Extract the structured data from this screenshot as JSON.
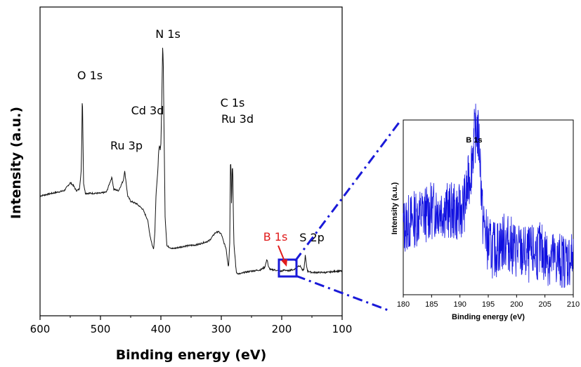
{
  "colors": {
    "main_line": "#111111",
    "inset_line": "#1010e0",
    "highlight_box": "#1a1ad8",
    "connector": "#1a1ad8",
    "b1s_label": "#e01b1b",
    "text": "#000000"
  },
  "chart_data": [
    {
      "type": "line",
      "xlabel": "Binding energy (eV)",
      "ylabel": "Intensity (a.u.)",
      "xlim": [
        600,
        100
      ],
      "x_ticks": [
        "600",
        "500",
        "400",
        "300",
        "200",
        "100"
      ],
      "y_ticks_shown": false,
      "grid": false,
      "annotations": [
        {
          "text": "O 1s",
          "x": 530
        },
        {
          "text": "Ru 3p",
          "x": 470
        },
        {
          "text": "Cd 3d",
          "x": 405
        },
        {
          "text": "N 1s",
          "x": 398
        },
        {
          "text": "C 1s",
          "x": 285
        },
        {
          "text": "Ru 3d",
          "x": 282
        },
        {
          "text": "B 1s",
          "x": 192,
          "color": "red"
        },
        {
          "text": "S 2p",
          "x": 162
        }
      ],
      "series": [
        {
          "x": [
            600,
            580,
            560,
            550,
            545,
            540,
            535,
            532,
            531,
            530,
            529,
            528,
            525,
            515,
            500,
            490,
            483,
            481,
            478,
            470,
            462,
            460,
            458,
            455,
            450,
            440,
            430,
            422,
            418,
            414,
            412,
            410,
            408,
            406,
            405,
            404,
            403,
            402,
            401,
            400,
            399,
            398,
            397,
            396,
            395,
            393,
            390,
            380,
            360,
            340,
            320,
            310,
            305,
            300,
            296,
            292,
            290,
            288,
            286,
            285,
            284,
            283,
            282,
            281,
            280,
            279,
            278,
            277,
            276,
            275,
            272,
            268,
            262,
            250,
            235,
            228,
            225,
            224,
            222,
            218,
            212,
            205,
            200,
            195,
            190,
            185,
            180,
            175,
            172,
            170,
            168,
            165,
            163,
            162,
            161,
            159,
            157,
            150,
            140,
            125,
            110,
            100
          ],
          "y": [
            60,
            62,
            64,
            70,
            68,
            64,
            65,
            78,
            98,
            140,
            106,
            70,
            62,
            62,
            62,
            63,
            72,
            74,
            65,
            64,
            72,
            79,
            72,
            60,
            56,
            54,
            50,
            42,
            30,
            22,
            20,
            32,
            62,
            73,
            79,
            92,
            96,
            98,
            94,
            100,
            120,
            147,
            175,
            160,
            118,
            44,
            22,
            20,
            22,
            23,
            26,
            32,
            33,
            31,
            25,
            20,
            12,
            6,
            25,
            83,
            85,
            50,
            80,
            82,
            43,
            22,
            17,
            13,
            6,
            2,
            1,
            1,
            2,
            3,
            4,
            6,
            11,
            12,
            6,
            4,
            4,
            3,
            3,
            4,
            3,
            4,
            4,
            6,
            7,
            7,
            6,
            3,
            5,
            10,
            15,
            7,
            3,
            2,
            2,
            2,
            3,
            3
          ]
        }
      ]
    },
    {
      "type": "line",
      "xlabel": "Binding energy (eV)",
      "ylabel": "Intensity (a.u.)",
      "xlim": [
        180,
        210
      ],
      "x_ticks": [
        "180",
        "185",
        "190",
        "195",
        "200",
        "205",
        "210"
      ],
      "y_ticks_shown": false,
      "grid": false,
      "annotations": [
        {
          "text": "B 1s",
          "x": 193
        }
      ],
      "series": [
        {
          "x": [
            180,
            182,
            184,
            186,
            188,
            190,
            191,
            192,
            192.5,
            193,
            193.5,
            194,
            195,
            196,
            198,
            200,
            202,
            204,
            206,
            208,
            210
          ],
          "y": [
            45,
            48,
            50,
            52,
            51,
            50,
            55,
            68,
            78,
            82,
            74,
            48,
            38,
            36,
            40,
            36,
            34,
            36,
            33,
            32,
            33
          ]
        }
      ]
    }
  ]
}
